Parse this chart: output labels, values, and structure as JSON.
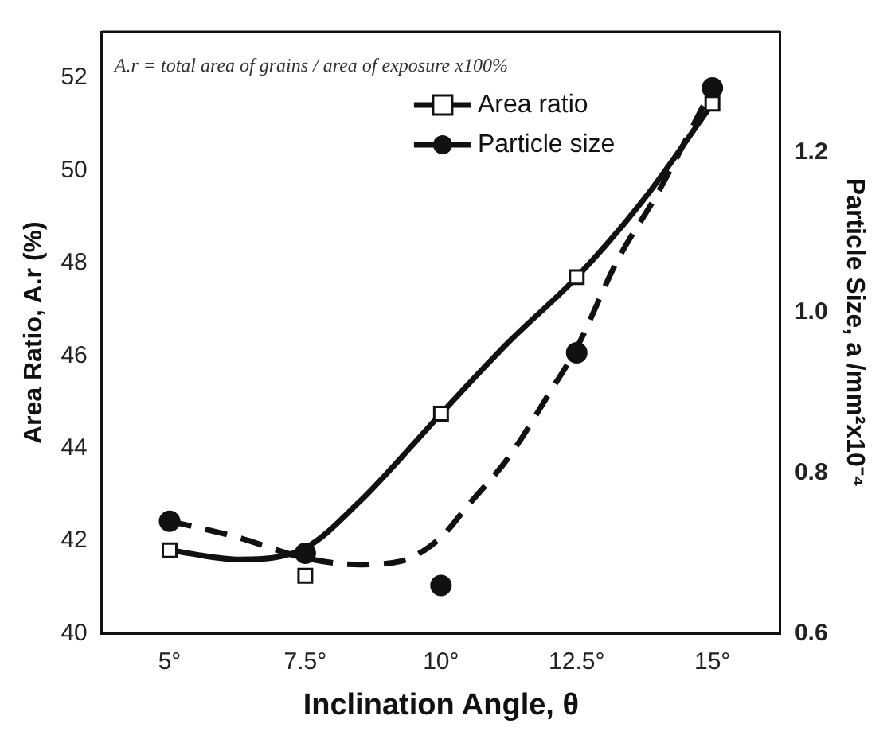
{
  "chart_data": {
    "type": "scatter",
    "xlabel": "Inclination Angle, θ",
    "ylabel": "Area Ratio, A.r (%)",
    "y2label": "Particle Size, a /mm²x10⁻⁴",
    "annotations": [
      "A.r = total area of grains / area of exposure x100%"
    ],
    "x": [
      5,
      7.5,
      10,
      12.5,
      15
    ],
    "series": [
      {
        "name": "Area ratio",
        "color": "#111111",
        "marker": "square",
        "values": [
          41.8,
          41.25,
          44.75,
          47.7,
          51.45
        ]
      },
      {
        "name": "Particle size",
        "color": "#111111",
        "marker": "circle",
        "axis": "y2",
        "values": [
          0.74,
          0.7,
          0.66,
          0.95,
          1.28
        ]
      },
      {
        "type": "line",
        "color": "#111111",
        "line_style": "solid",
        "marker": "none",
        "x": [
          5,
          6.3,
          7.5,
          8.5,
          10,
          11.25,
          12.5,
          13.75,
          15
        ],
        "values": [
          41.8,
          41.6,
          41.85,
          42.85,
          44.75,
          46.3,
          47.7,
          49.4,
          51.45
        ]
      },
      {
        "type": "line",
        "color": "#111111",
        "line_style": "dashed",
        "marker": "none",
        "axis": "y2",
        "x": [
          5,
          6.25,
          7.5,
          8.5,
          9.25,
          10,
          10.5,
          11.25,
          12,
          12.5,
          13.25,
          14,
          15
        ],
        "values": [
          0.74,
          0.72,
          0.694,
          0.686,
          0.69,
          0.72,
          0.76,
          0.82,
          0.9,
          0.956,
          1.065,
          1.15,
          1.28
        ]
      }
    ],
    "xlim": [
      3.75,
      16.25
    ],
    "xticks": [
      {
        "value": 5,
        "label": "5°"
      },
      {
        "value": 7.5,
        "label": "7.5°"
      },
      {
        "value": 10,
        "label": "10°"
      },
      {
        "value": 12.5,
        "label": "12.5°"
      },
      {
        "value": 15,
        "label": "15°"
      }
    ],
    "ylim": [
      40,
      53
    ],
    "yticks": [
      40,
      42,
      44,
      46,
      48,
      50,
      52
    ],
    "y2lim": [
      0.6,
      1.35
    ],
    "y2ticks": [
      0.6,
      0.8,
      {
        "value": 1,
        "label": "1.0"
      },
      1.2
    ],
    "grid": false,
    "legend": "top right"
  }
}
